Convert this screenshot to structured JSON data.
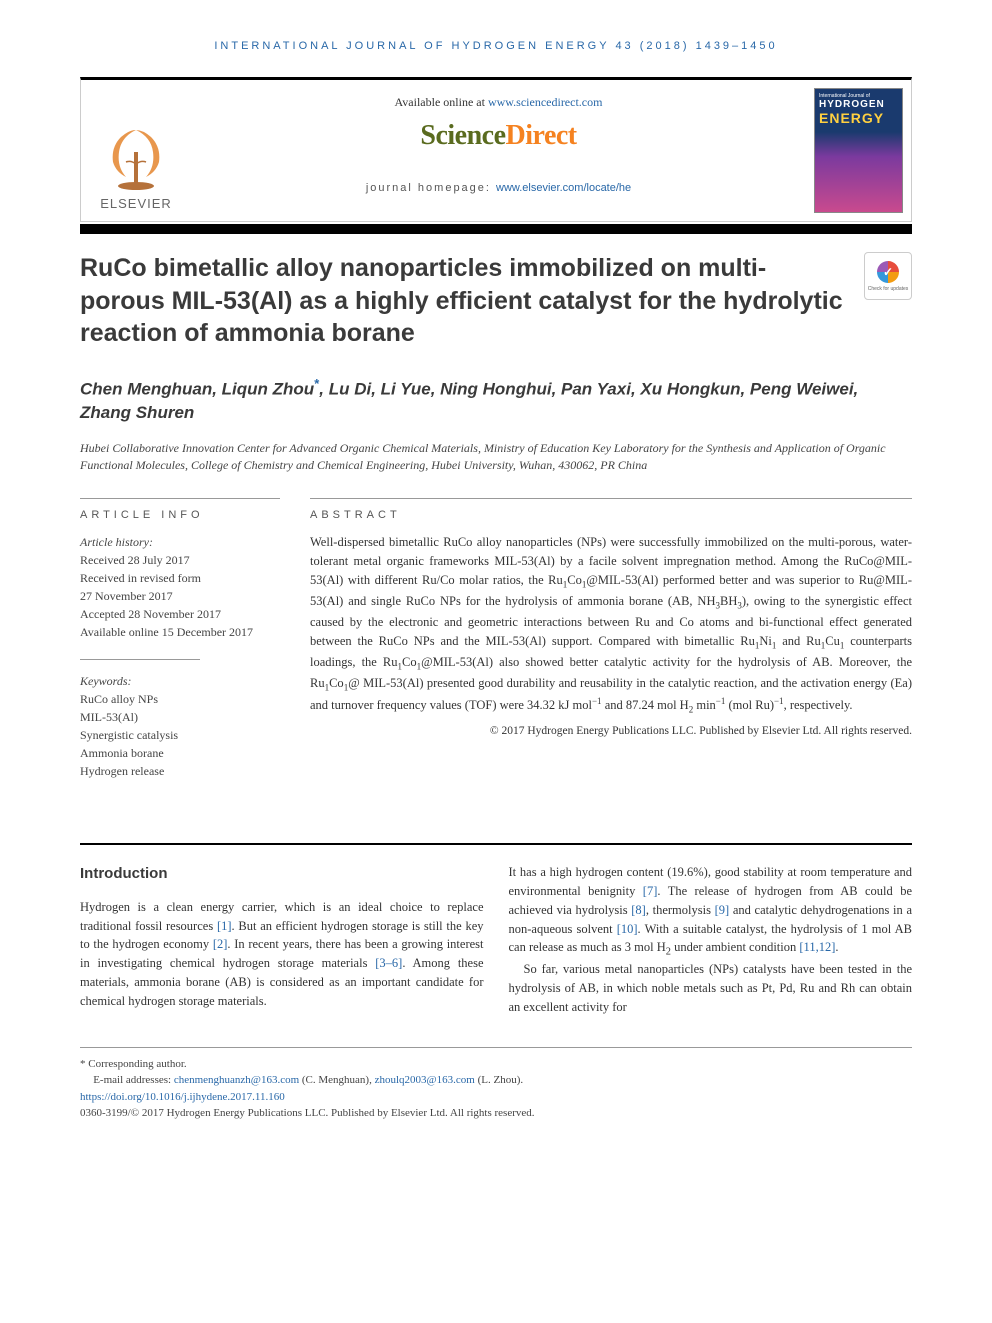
{
  "running_header": "INTERNATIONAL JOURNAL OF HYDROGEN ENERGY 43 (2018) 1439–1450",
  "header": {
    "available_prefix": "Available online at ",
    "available_url": "www.sciencedirect.com",
    "sd_science": "Science",
    "sd_direct": "Direct",
    "journal_hp_label": "journal homepage: ",
    "journal_hp_url": "www.elsevier.com/locate/he",
    "elsevier_label": "ELSEVIER",
    "cover_line1": "International Journal of",
    "cover_hydrogen": "HYDROGEN",
    "cover_energy": "ENERGY"
  },
  "title": "RuCo bimetallic alloy nanoparticles immobilized on multi-porous MIL-53(Al) as a highly efficient catalyst for the hydrolytic reaction of ammonia borane",
  "crossmark_label": "Check for updates",
  "authors_html": "Chen Menghuan, Liqun Zhou<span class=\"corr-star\">*</span>, Lu Di, Li Yue, Ning Honghui, Pan Yaxi, Xu Hongkun, Peng Weiwei, Zhang Shuren",
  "affiliation": "Hubei Collaborative Innovation Center for Advanced Organic Chemical Materials, Ministry of Education Key Laboratory for the Synthesis and Application of Organic Functional Molecules, College of Chemistry and Chemical Engineering, Hubei University, Wuhan, 430062, PR China",
  "article_info": {
    "header": "ARTICLE INFO",
    "history_label": "Article history:",
    "received": "Received 28 July 2017",
    "revised1": "Received in revised form",
    "revised2": "27 November 2017",
    "accepted": "Accepted 28 November 2017",
    "online": "Available online 15 December 2017",
    "keywords_label": "Keywords:",
    "keywords": [
      "RuCo alloy NPs",
      "MIL-53(Al)",
      "Synergistic catalysis",
      "Ammonia borane",
      "Hydrogen release"
    ]
  },
  "abstract": {
    "header": "ABSTRACT",
    "text_html": "Well-dispersed bimetallic RuCo alloy nanoparticles (NPs) were successfully immobilized on the multi-porous, water-tolerant metal organic frameworks MIL-53(Al) by a facile solvent impregnation method. Among the RuCo@MIL-53(Al) with different Ru/Co molar ratios, the Ru<sub>1</sub>Co<sub>1</sub>@MIL-53(Al) performed better and was superior to Ru@MIL-53(Al) and single RuCo NPs for the hydrolysis of ammonia borane (AB, NH<sub>3</sub>BH<sub>3</sub>), owing to the synergistic effect caused by the electronic and geometric interactions between Ru and Co atoms and bi-functional effect generated between the RuCo NPs and the MIL-53(Al) support. Compared with bimetallic Ru<sub>1</sub>Ni<sub>1</sub> and Ru<sub>1</sub>Cu<sub>1</sub> counterparts loadings, the Ru<sub>1</sub>Co<sub>1</sub>@MIL-53(Al) also showed better catalytic activity for the hydrolysis of AB. Moreover, the Ru<sub>1</sub>Co<sub>1</sub>@ MIL-53(Al) presented good durability and reusability in the catalytic reaction, and the activation energy (Ea) and turnover frequency values (TOF) were 34.32 kJ mol<sup>−1</sup> and 87.24 mol H<sub>2</sub> min<sup>−1</sup> (mol Ru)<sup>−1</sup>, respectively.",
    "copyright": "© 2017 Hydrogen Energy Publications LLC. Published by Elsevier Ltd. All rights reserved."
  },
  "body": {
    "intro_header": "Introduction",
    "col1_html": "Hydrogen is a clean energy carrier, which is an ideal choice to replace traditional fossil resources <span class=\"ref-link\">[1]</span>. But an efficient hydrogen storage is still the key to the hydrogen economy <span class=\"ref-link\">[2]</span>. In recent years, there has been a growing interest in investigating chemical hydrogen storage materials <span class=\"ref-link\">[3–6]</span>. Among these materials, ammonia borane (AB) is considered as an important candidate for chemical hydrogen storage materials.",
    "col2_p1_html": "It has a high hydrogen content (19.6%), good stability at room temperature and environmental benignity <span class=\"ref-link\">[7]</span>. The release of hydrogen from AB could be achieved via hydrolysis <span class=\"ref-link\">[8]</span>, thermolysis <span class=\"ref-link\">[9]</span> and catalytic dehydrogenations in a non-aqueous solvent <span class=\"ref-link\">[10]</span>. With a suitable catalyst, the hydrolysis of 1 mol AB can release as much as 3 mol H<sub>2</sub> under ambient condition <span class=\"ref-link\">[11,12]</span>.",
    "col2_p2_html": "So far, various metal nanoparticles (NPs) catalysts have been tested in the hydrolysis of AB, in which noble metals such as Pt, Pd, Ru and Rh can obtain an excellent activity for"
  },
  "footnotes": {
    "corr": "* Corresponding author.",
    "email_label": "E-mail addresses: ",
    "email1": "chenmenghuanzh@163.com",
    "email1_who": " (C. Menghuan), ",
    "email2": "zhoulq2003@163.com",
    "email2_who": " (L. Zhou).",
    "doi": "https://doi.org/10.1016/j.ijhydene.2017.11.160",
    "issn_line": "0360-3199/© 2017 Hydrogen Energy Publications LLC. Published by Elsevier Ltd. All rights reserved."
  },
  "colors": {
    "link": "#2968a8",
    "sd_green": "#5a6b1f",
    "sd_orange": "#f58220"
  }
}
